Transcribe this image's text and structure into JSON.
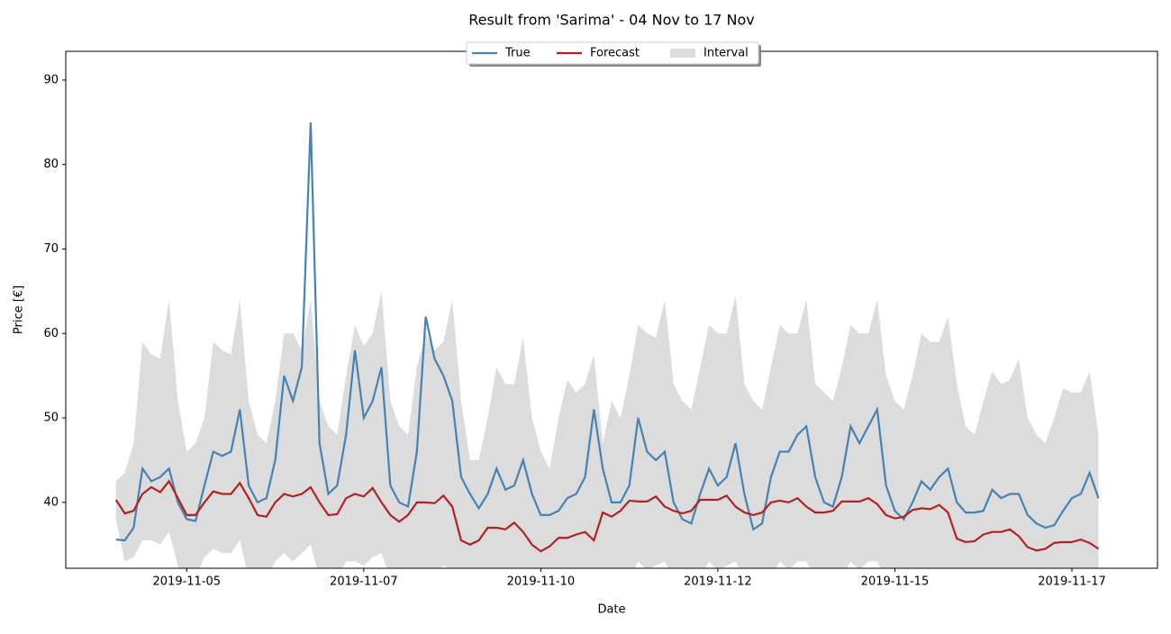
{
  "chart_data": {
    "type": "line",
    "title": "Result from 'Sarima' - 04 Nov to 17 Nov",
    "x_label": "Date",
    "y_label": "Price [€]",
    "x": [
      "2019-11-04T00:00",
      "2019-11-04T03:00",
      "2019-11-04T06:00",
      "2019-11-04T09:00",
      "2019-11-04T12:00",
      "2019-11-04T15:00",
      "2019-11-04T18:00",
      "2019-11-04T21:00",
      "2019-11-05T00:00",
      "2019-11-05T03:00",
      "2019-11-05T06:00",
      "2019-11-05T09:00",
      "2019-11-05T12:00",
      "2019-11-05T15:00",
      "2019-11-05T18:00",
      "2019-11-05T21:00",
      "2019-11-06T00:00",
      "2019-11-06T03:00",
      "2019-11-06T06:00",
      "2019-11-06T09:00",
      "2019-11-06T12:00",
      "2019-11-06T15:00",
      "2019-11-06T18:00",
      "2019-11-06T21:00",
      "2019-11-07T00:00",
      "2019-11-07T03:00",
      "2019-11-07T06:00",
      "2019-11-07T09:00",
      "2019-11-07T12:00",
      "2019-11-07T15:00",
      "2019-11-07T18:00",
      "2019-11-07T21:00",
      "2019-11-08T00:00",
      "2019-11-08T03:00",
      "2019-11-08T06:00",
      "2019-11-08T09:00",
      "2019-11-08T12:00",
      "2019-11-08T15:00",
      "2019-11-08T18:00",
      "2019-11-08T21:00",
      "2019-11-09T00:00",
      "2019-11-09T03:00",
      "2019-11-09T06:00",
      "2019-11-09T09:00",
      "2019-11-09T12:00",
      "2019-11-09T15:00",
      "2019-11-09T18:00",
      "2019-11-09T21:00",
      "2019-11-10T00:00",
      "2019-11-10T03:00",
      "2019-11-10T06:00",
      "2019-11-10T09:00",
      "2019-11-10T12:00",
      "2019-11-10T15:00",
      "2019-11-10T18:00",
      "2019-11-10T21:00",
      "2019-11-11T00:00",
      "2019-11-11T03:00",
      "2019-11-11T06:00",
      "2019-11-11T09:00",
      "2019-11-11T12:00",
      "2019-11-11T15:00",
      "2019-11-11T18:00",
      "2019-11-11T21:00",
      "2019-11-12T00:00",
      "2019-11-12T03:00",
      "2019-11-12T06:00",
      "2019-11-12T09:00",
      "2019-11-12T12:00",
      "2019-11-12T15:00",
      "2019-11-12T18:00",
      "2019-11-12T21:00",
      "2019-11-13T00:00",
      "2019-11-13T03:00",
      "2019-11-13T06:00",
      "2019-11-13T09:00",
      "2019-11-13T12:00",
      "2019-11-13T15:00",
      "2019-11-13T18:00",
      "2019-11-13T21:00",
      "2019-11-14T00:00",
      "2019-11-14T03:00",
      "2019-11-14T06:00",
      "2019-11-14T09:00",
      "2019-11-14T12:00",
      "2019-11-14T15:00",
      "2019-11-14T18:00",
      "2019-11-14T21:00",
      "2019-11-15T00:00",
      "2019-11-15T03:00",
      "2019-11-15T06:00",
      "2019-11-15T09:00",
      "2019-11-15T12:00",
      "2019-11-15T15:00",
      "2019-11-15T18:00",
      "2019-11-15T21:00",
      "2019-11-16T00:00",
      "2019-11-16T03:00",
      "2019-11-16T06:00",
      "2019-11-16T09:00",
      "2019-11-16T12:00",
      "2019-11-16T15:00",
      "2019-11-16T18:00",
      "2019-11-16T21:00",
      "2019-11-17T00:00",
      "2019-11-17T03:00",
      "2019-11-17T06:00",
      "2019-11-17T09:00",
      "2019-11-17T12:00",
      "2019-11-17T15:00",
      "2019-11-17T18:00",
      "2019-11-17T21:00"
    ],
    "series": [
      {
        "name": "True",
        "color": "#4682b4",
        "values": [
          35.6,
          35.5,
          37,
          44,
          42.5,
          43,
          44,
          40,
          38,
          37.8,
          42,
          46,
          45.5,
          46,
          51,
          42,
          40,
          40.5,
          45,
          55,
          52,
          56,
          85,
          47,
          41,
          42,
          48,
          58,
          50,
          52,
          56,
          42,
          40,
          39.5,
          46,
          62,
          57,
          55,
          52,
          43,
          41,
          39.3,
          41,
          44,
          41.5,
          42,
          45,
          41,
          38.5,
          38.5,
          39,
          40.5,
          41,
          43,
          51,
          44,
          40,
          40,
          42,
          50,
          46,
          45,
          46,
          40,
          38,
          37.5,
          41,
          44,
          42,
          43,
          47,
          41,
          36.8,
          37.5,
          43,
          46,
          46,
          48,
          49,
          43,
          40,
          39.5,
          43,
          49,
          47,
          49,
          51,
          42,
          39,
          38,
          40,
          42.5,
          41.5,
          43,
          44,
          40,
          38.8,
          38.8,
          39,
          41.5,
          40.5,
          41,
          41,
          38.5,
          37.5,
          37,
          37.3,
          39,
          40.5,
          41,
          43.5,
          40.5
        ]
      },
      {
        "name": "Forecast",
        "color": "#b22222",
        "values": [
          40.3,
          38.7,
          39,
          41,
          41.8,
          41.2,
          42.5,
          40.5,
          38.5,
          38.5,
          40,
          41.3,
          41,
          41,
          42.3,
          40.5,
          38.5,
          38.3,
          40,
          41,
          40.7,
          41,
          41.8,
          40,
          38.5,
          38.6,
          40.5,
          41,
          40.7,
          41.7,
          40,
          38.5,
          37.7,
          38.5,
          40,
          40,
          39.9,
          40.8,
          39.5,
          35.5,
          35,
          35.5,
          37,
          37,
          36.8,
          37.6,
          36.5,
          35,
          34.2,
          34.8,
          35.8,
          35.8,
          36.2,
          36.5,
          35.5,
          38.8,
          38.3,
          39,
          40.2,
          40.1,
          40.1,
          40.7,
          39.5,
          39,
          38.7,
          39,
          40.3,
          40.3,
          40.3,
          40.8,
          39.5,
          38.8,
          38.5,
          38.8,
          40,
          40.2,
          40,
          40.5,
          39.5,
          38.8,
          38.8,
          39,
          40.1,
          40.1,
          40.1,
          40.5,
          39.8,
          38.5,
          38.1,
          38.3,
          39.1,
          39.3,
          39.2,
          39.7,
          38.8,
          35.7,
          35.3,
          35.4,
          36.2,
          36.5,
          36.5,
          36.8,
          36,
          34.7,
          34.3,
          34.5,
          35.2,
          35.3,
          35.3,
          35.6,
          35.2,
          34.5
        ]
      }
    ],
    "bands": [
      {
        "name": "Interval",
        "color": "#dcdcdc",
        "lower": [
          38,
          33,
          33.5,
          35.5,
          35.5,
          35,
          36.5,
          32.5,
          30,
          31,
          33.5,
          34.5,
          34,
          34,
          35.5,
          31,
          30,
          31,
          33,
          34,
          33,
          34,
          35,
          31,
          30,
          31,
          33,
          33,
          32.5,
          33.5,
          34,
          31,
          30,
          30,
          31,
          32,
          31.5,
          32.5,
          32,
          29,
          27,
          27,
          28,
          29,
          28.5,
          29,
          29,
          27,
          25,
          25,
          26,
          27,
          26,
          27,
          27,
          28,
          30,
          30,
          31,
          33,
          32,
          32.5,
          33,
          31,
          30,
          30,
          31,
          33,
          32,
          32.5,
          33,
          31,
          30,
          30,
          31,
          33,
          32,
          33,
          33,
          31,
          30,
          30,
          31,
          33,
          32,
          33,
          33,
          31,
          29,
          29,
          30,
          31,
          30,
          31,
          31,
          28,
          26,
          26,
          27,
          28,
          27.5,
          28,
          28,
          26,
          25,
          25,
          26,
          27,
          26.5,
          27,
          27,
          26
        ],
        "upper": [
          42.5,
          43.5,
          47,
          59,
          57.5,
          57,
          64,
          52,
          46,
          47,
          50,
          59,
          58,
          57.5,
          64,
          52,
          48,
          47,
          52,
          60,
          60,
          58,
          64,
          52,
          49,
          48,
          55,
          61,
          58.5,
          60,
          65,
          52,
          49,
          48,
          56,
          60,
          58,
          59,
          64,
          52,
          45,
          45,
          50,
          56,
          54,
          54,
          59.5,
          50,
          46,
          44,
          50,
          54.5,
          53,
          54,
          57.5,
          47,
          52,
          50,
          55,
          61,
          60,
          59.5,
          64,
          54,
          52,
          51,
          56,
          61,
          60,
          60,
          64.5,
          54,
          52,
          51,
          56,
          61,
          60,
          60,
          64,
          54,
          53,
          52,
          56,
          61,
          60,
          60,
          64,
          55,
          52,
          51,
          55,
          60,
          59,
          59,
          62,
          54,
          49,
          48,
          52,
          55.5,
          54,
          54.5,
          57,
          50,
          48,
          47,
          50,
          53.5,
          53,
          53,
          55.5,
          48
        ]
      }
    ],
    "xlim": [
      "2019-11-03T07:00",
      "2019-11-18T17:00"
    ],
    "xticks": [
      {
        "value": "2019-11-05T00:00",
        "label": "2019-11-05"
      },
      {
        "value": "2019-11-07T12:00",
        "label": "2019-11-07"
      },
      {
        "value": "2019-11-10T00:00",
        "label": "2019-11-10"
      },
      {
        "value": "2019-11-12T12:00",
        "label": "2019-11-12"
      },
      {
        "value": "2019-11-15T00:00",
        "label": "2019-11-15"
      },
      {
        "value": "2019-11-17T12:00",
        "label": "2019-11-17"
      }
    ],
    "ylim": [
      32.2,
      93.4
    ],
    "yticks": [
      40,
      50,
      60,
      70,
      80,
      90
    ],
    "legend": "top"
  }
}
